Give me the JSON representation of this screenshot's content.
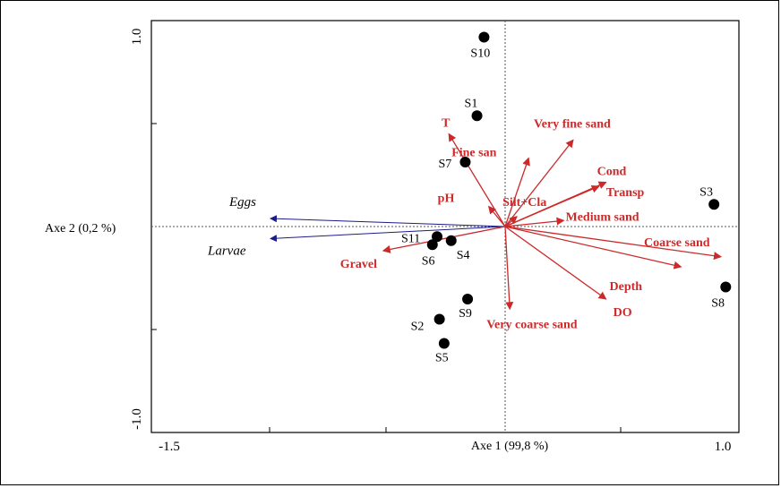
{
  "chart_data": {
    "type": "scatter",
    "subtype": "ordination-biplot",
    "xlabel": "Axe 1 (99,8 %)",
    "ylabel": "Axe 2 (0,2 %)",
    "xlim": [
      -1.5,
      1.0
    ],
    "ylim": [
      -1.0,
      1.0
    ],
    "x_tick_labels": [
      "-1.5",
      "1.0"
    ],
    "y_tick_labels": [
      "1.0",
      "-1.0"
    ],
    "grid": false,
    "colors": {
      "environment": "#cc2a2a",
      "species": "#1c1c8a",
      "sites": "#000000"
    },
    "sites": [
      {
        "label": "S1",
        "x": -0.12,
        "y": 0.55
      },
      {
        "label": "S2",
        "x": -0.28,
        "y": -0.46
      },
      {
        "label": "S3",
        "x": 0.89,
        "y": 0.11
      },
      {
        "label": "S4",
        "x": -0.23,
        "y": -0.07
      },
      {
        "label": "S5",
        "x": -0.26,
        "y": -0.58
      },
      {
        "label": "S6",
        "x": -0.31,
        "y": -0.09
      },
      {
        "label": "S7",
        "x": -0.17,
        "y": 0.32
      },
      {
        "label": "S8",
        "x": 0.94,
        "y": -0.3
      },
      {
        "label": "S9",
        "x": -0.16,
        "y": -0.36
      },
      {
        "label": "S10",
        "x": -0.09,
        "y": 0.94
      },
      {
        "label": "S11",
        "x": -0.29,
        "y": -0.05
      }
    ],
    "species": [
      {
        "label": "Eggs",
        "x": -1.0,
        "y": 0.04
      },
      {
        "label": "Larvae",
        "x": -1.0,
        "y": -0.06
      }
    ],
    "environment": [
      {
        "label": "T",
        "x": -0.24,
        "y": 0.46
      },
      {
        "label": "Very fine sand",
        "x": 0.29,
        "y": 0.43
      },
      {
        "label": "Fine san",
        "x": 0.1,
        "y": 0.34
      },
      {
        "label": "Cond",
        "x": 0.43,
        "y": 0.22
      },
      {
        "label": "Transp",
        "x": 0.4,
        "y": 0.2
      },
      {
        "label": "pH",
        "x": -0.07,
        "y": 0.1
      },
      {
        "label": "Silt+Cla",
        "x": 0.05,
        "y": 0.05
      },
      {
        "label": "Medium sand",
        "x": 0.25,
        "y": 0.03
      },
      {
        "label": "Coarse sand",
        "x": 0.92,
        "y": -0.15
      },
      {
        "label": "Depth",
        "x": 0.75,
        "y": -0.2
      },
      {
        "label": "DO",
        "x": 0.43,
        "y": -0.36
      },
      {
        "label": "Very coarse sand",
        "x": 0.02,
        "y": -0.41
      },
      {
        "label": "Gravel",
        "x": -0.52,
        "y": -0.12
      }
    ]
  }
}
